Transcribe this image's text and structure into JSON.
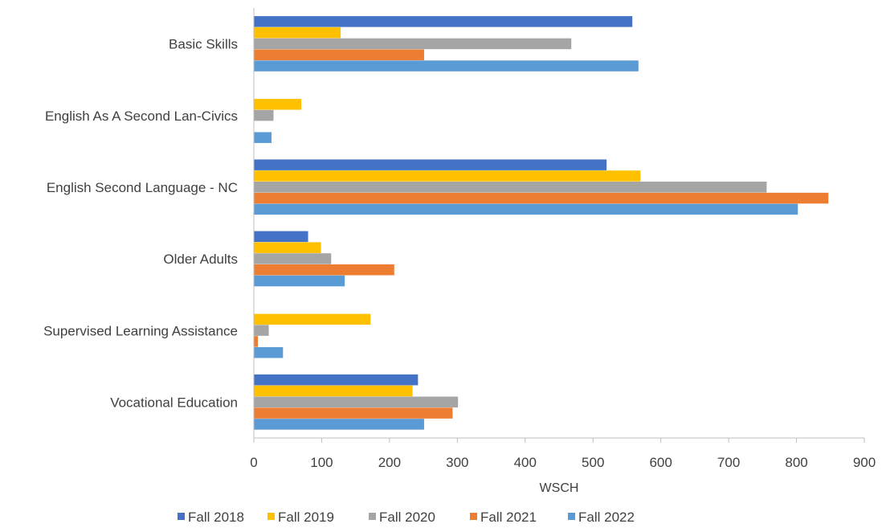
{
  "chart_data": {
    "type": "bar",
    "orientation": "horizontal",
    "categories": [
      "Basic Skills",
      "English As A Second Lan-Civics",
      "English Second Language - NC",
      "Older Adults",
      "Supervised Learning Assistance",
      "Vocational Education"
    ],
    "series": [
      {
        "name": "Fall 2018",
        "color": "#4472C4",
        "values": [
          558,
          null,
          520,
          80,
          null,
          242
        ]
      },
      {
        "name": "Fall 2019",
        "color": "#FFC000",
        "values": [
          128,
          70,
          570,
          99,
          172,
          234
        ]
      },
      {
        "name": "Fall 2020",
        "color": "#A5A5A5",
        "values": [
          468,
          29,
          756,
          114,
          22,
          301
        ]
      },
      {
        "name": "Fall 2021",
        "color": "#ED7D31",
        "values": [
          251,
          null,
          847,
          207,
          6,
          293
        ]
      },
      {
        "name": "Fall 2022",
        "color": "#5B9BD5",
        "values": [
          567,
          26,
          802,
          134,
          43,
          251
        ]
      }
    ],
    "xlabel": "WSCH",
    "ylabel": "",
    "xlim": [
      0,
      900
    ],
    "xticks": [
      "0",
      "100",
      "200",
      "300",
      "400",
      "500",
      "600",
      "700",
      "800",
      "900"
    ],
    "grid": false,
    "legend": "bottom"
  }
}
